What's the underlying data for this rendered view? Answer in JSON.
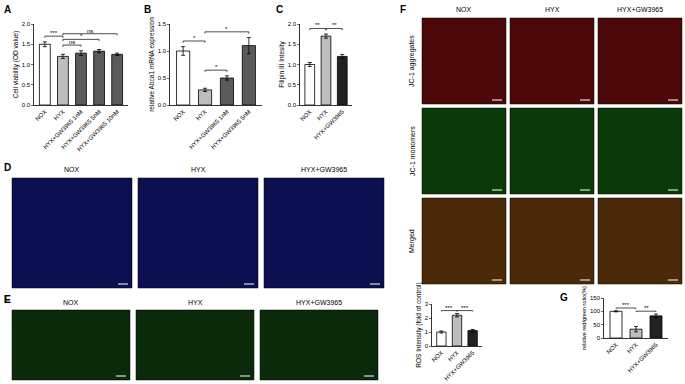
{
  "chart_data": [
    {
      "panel": "A",
      "type": "bar",
      "y_label": "Cell viability (OD value)",
      "categories": [
        "NOX",
        "HYX",
        "HYX+GW3965 1nM",
        "HYX+GW3965 5nM",
        "HYX+GW3965 10nM"
      ],
      "values": [
        1.5,
        1.2,
        1.28,
        1.33,
        1.25
      ],
      "errors": [
        0.06,
        0.05,
        0.06,
        0.04,
        0.03
      ],
      "colors": [
        "#ffffff",
        "#bdbdbd",
        "#5a5a5a",
        "#5a5a5a",
        "#5a5a5a"
      ],
      "ylim": [
        0,
        2
      ],
      "yticks": [
        {
          "value": 0,
          "label": "0.0"
        },
        {
          "value": 0.5,
          "label": "0.5"
        },
        {
          "value": 1,
          "label": "1.0"
        },
        {
          "value": 1.5,
          "label": "1.5"
        },
        {
          "value": 2,
          "label": "2.0"
        }
      ],
      "grid": false,
      "comparisons": [
        {
          "from": 0,
          "to": 1,
          "label": "***"
        },
        {
          "from": 1,
          "to": 2,
          "label": "ns"
        },
        {
          "from": 1,
          "to": 3,
          "label": "*"
        },
        {
          "from": 1,
          "to": 4,
          "label": "ns"
        }
      ]
    },
    {
      "panel": "B",
      "type": "bar",
      "y_label": "relative Abca1 mRNA expression",
      "categories": [
        "NOX",
        "HYX",
        "HYX+GW3965 1nM",
        "HYX+GW3965 5nM"
      ],
      "values": [
        1.0,
        0.28,
        0.5,
        1.1
      ],
      "errors": [
        0.08,
        0.03,
        0.04,
        0.15
      ],
      "colors": [
        "#ffffff",
        "#bdbdbd",
        "#5a5a5a",
        "#5a5a5a"
      ],
      "ylim": [
        0,
        1.5
      ],
      "yticks": [
        {
          "value": 0,
          "label": "0.0"
        },
        {
          "value": 0.5,
          "label": "0.5"
        },
        {
          "value": 1,
          "label": "1.0"
        },
        {
          "value": 1.5,
          "label": "1.5"
        }
      ],
      "grid": false,
      "comparisons": [
        {
          "from": 0,
          "to": 1,
          "label": "*"
        },
        {
          "from": 1,
          "to": 2,
          "label": "*"
        },
        {
          "from": 1,
          "to": 3,
          "label": "*"
        }
      ]
    },
    {
      "panel": "C",
      "type": "bar",
      "y_label": "Filipin III Intesity",
      "categories": [
        "NOX",
        "HYX",
        "HYX+GW3965"
      ],
      "values": [
        1.0,
        1.7,
        1.2
      ],
      "errors": [
        0.05,
        0.05,
        0.05
      ],
      "colors": [
        "#ffffff",
        "#bdbdbd",
        "#222222"
      ],
      "ylim": [
        0,
        2
      ],
      "yticks": [
        {
          "value": 0,
          "label": "0.0"
        },
        {
          "value": 0.5,
          "label": "0.5"
        },
        {
          "value": 1,
          "label": "1.0"
        },
        {
          "value": 1.5,
          "label": "1.5"
        },
        {
          "value": 2,
          "label": "2.0"
        }
      ],
      "grid": false,
      "comparisons": [
        {
          "from": 0,
          "to": 1,
          "label": "**"
        },
        {
          "from": 1,
          "to": 2,
          "label": "**"
        }
      ]
    },
    {
      "panel": "E",
      "type": "bar",
      "y_label": "ROS Intensity (fold of control)",
      "categories": [
        "NOX",
        "HYX",
        "HYX+GW3965"
      ],
      "values": [
        1.0,
        2.2,
        1.1
      ],
      "errors": [
        0.07,
        0.12,
        0.08
      ],
      "colors": [
        "#ffffff",
        "#bdbdbd",
        "#222222"
      ],
      "ylim": [
        0,
        3
      ],
      "yticks": [
        0,
        1,
        2,
        3
      ],
      "grid": false,
      "comparisons": [
        {
          "from": 0,
          "to": 1,
          "label": "***"
        },
        {
          "from": 1,
          "to": 2,
          "label": "***"
        }
      ]
    },
    {
      "panel": "G",
      "type": "bar",
      "y_label": "relative red/green ratio(%)",
      "categories": [
        "NOX",
        "HYX",
        "HYX+GW3965"
      ],
      "values": [
        100,
        33,
        83
      ],
      "errors": [
        2,
        10,
        7
      ],
      "colors": [
        "#ffffff",
        "#bdbdbd",
        "#222222"
      ],
      "ylim": [
        0,
        150
      ],
      "yticks": [
        0,
        50,
        100,
        150
      ],
      "grid": false,
      "comparisons": [
        {
          "from": 0,
          "to": 1,
          "label": "***"
        },
        {
          "from": 1,
          "to": 2,
          "label": "**"
        }
      ]
    }
  ],
  "images": [
    {
      "panel": "D",
      "columns": [
        "NOX",
        "HYX",
        "HYX+GW3965"
      ],
      "color": "#0b1050"
    },
    {
      "panel": "E",
      "columns": [
        "NOX",
        "HYX",
        "HYX+GW3965"
      ],
      "color": "#0a2a0a"
    },
    {
      "panel": "F",
      "columns": [
        "NOX",
        "HYX",
        "HYX+GW3965"
      ],
      "rows": [
        {
          "label": "JC-1 aggregates",
          "color": "#4a0808"
        },
        {
          "label": "JC-1 monomers",
          "color": "#0a3a0a"
        },
        {
          "label": "Merged",
          "color": "#4a2a08"
        }
      ]
    }
  ]
}
